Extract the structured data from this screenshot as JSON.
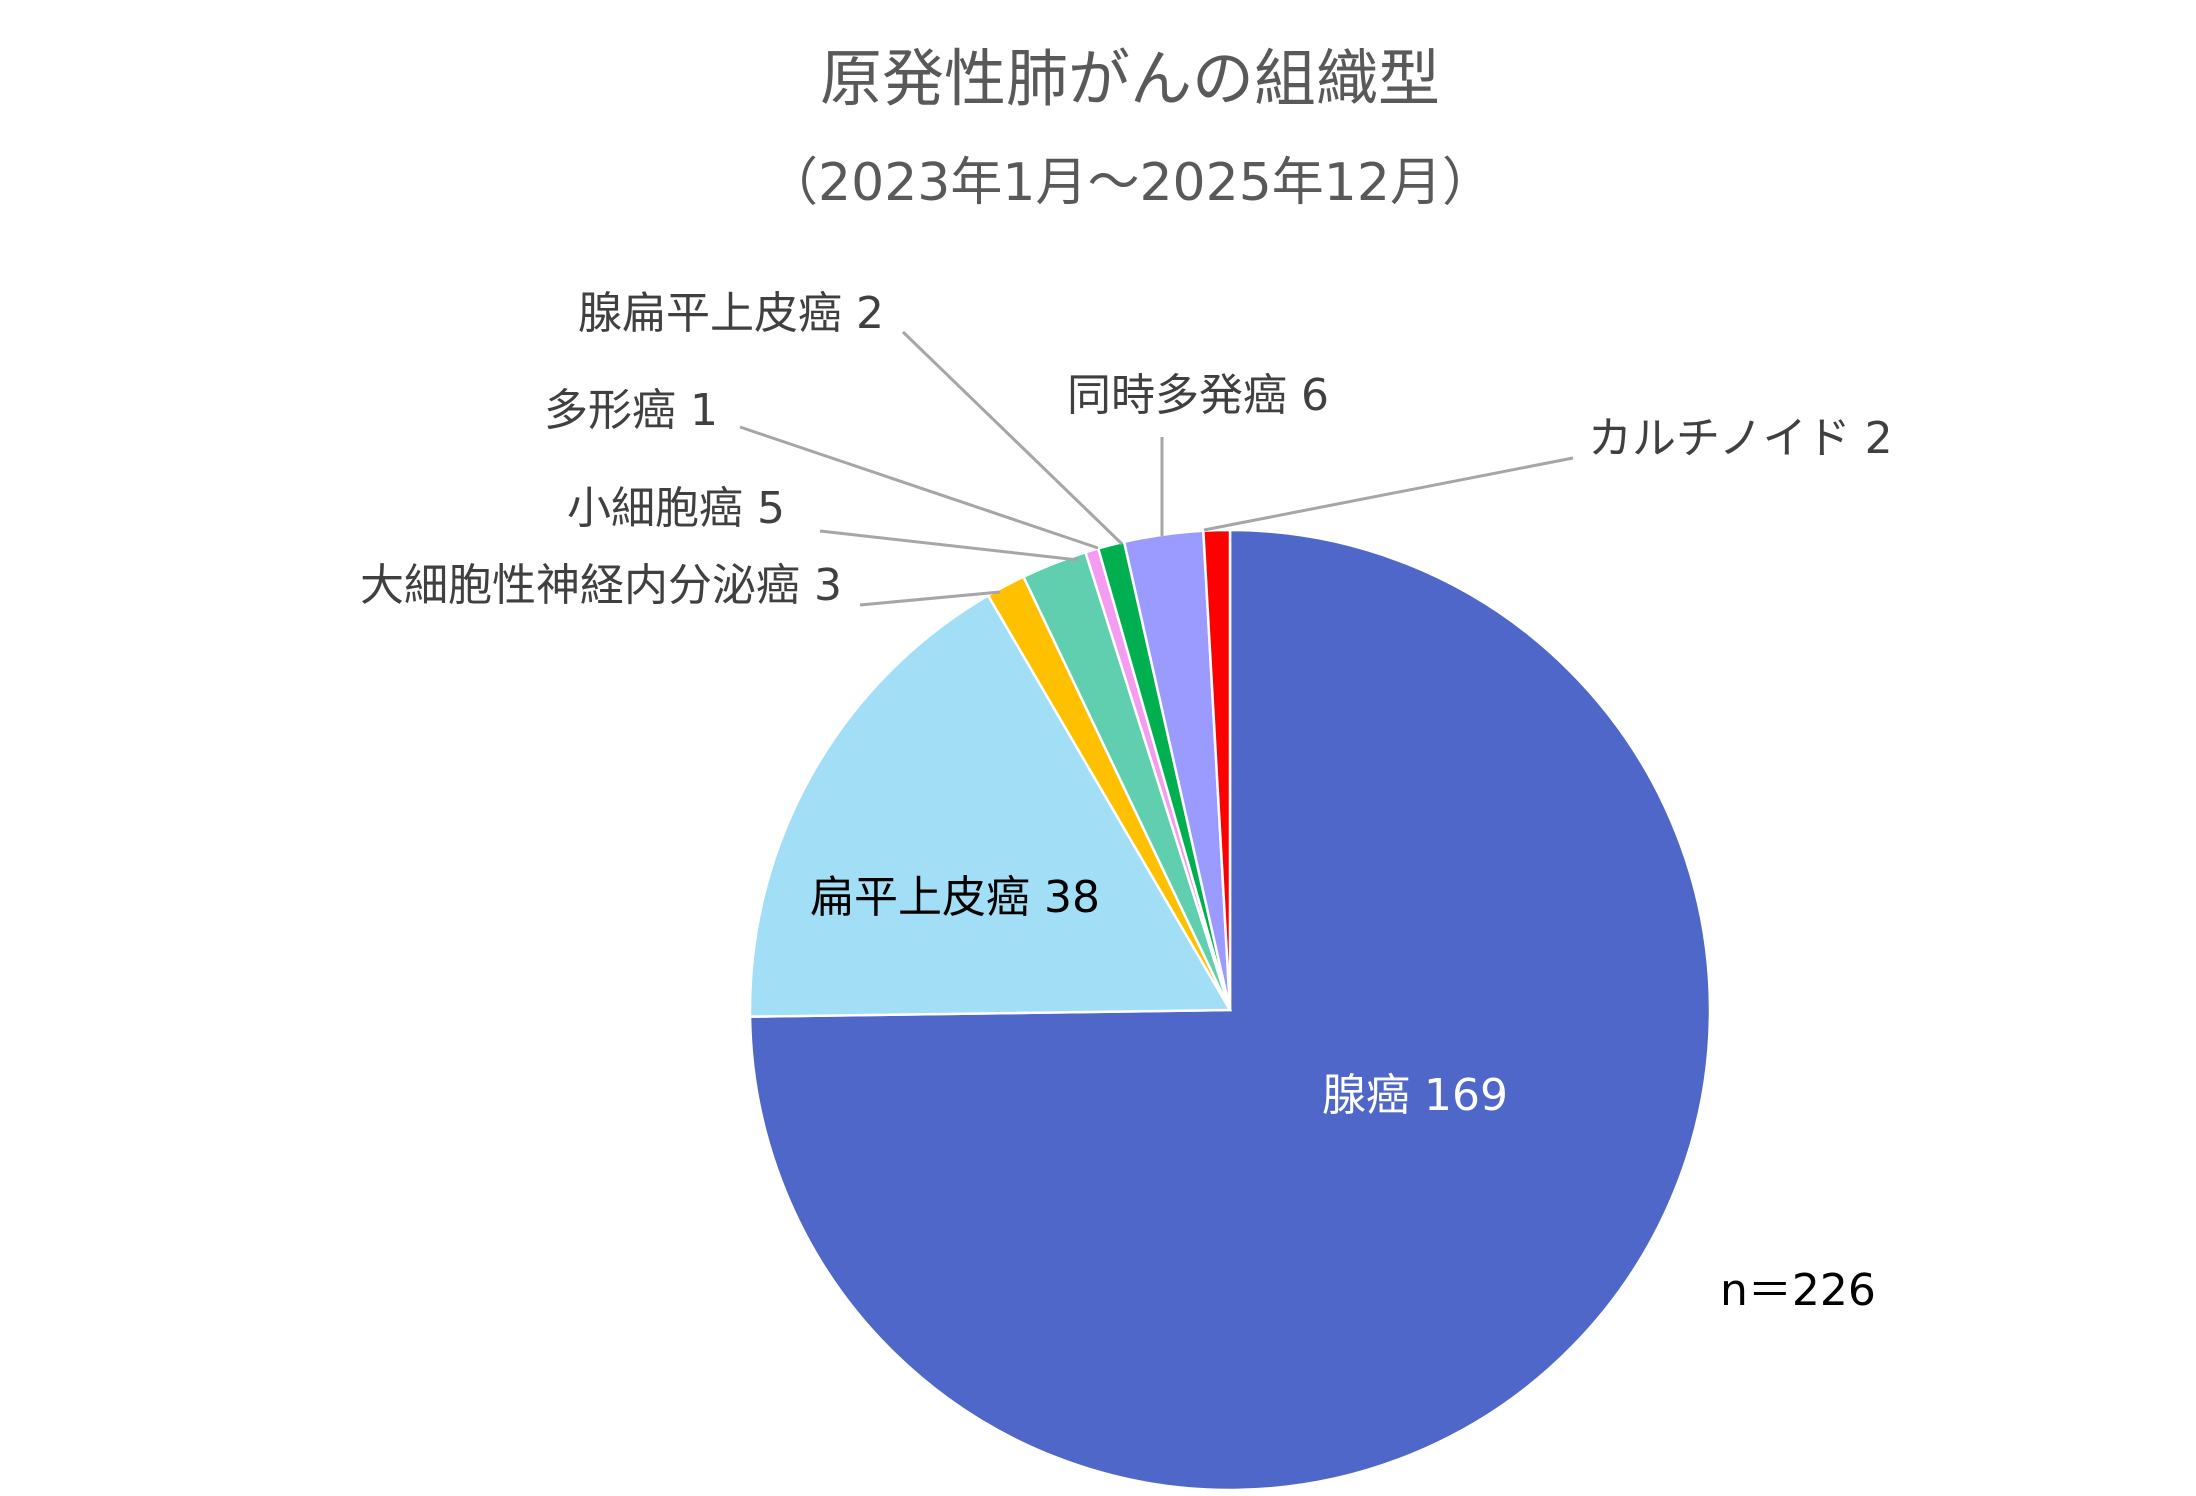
{
  "chart_data": {
    "type": "pie",
    "title": "原発性肺がんの組織型",
    "subtitle": "（2023年1月～2025年12月）",
    "note": "n＝226",
    "start": "12 o'clock",
    "direction": "clockwise",
    "slices": [
      {
        "name": "腺癌",
        "value": 169,
        "color": "#4f67c8",
        "label_text": "腺癌 169"
      },
      {
        "name": "扁平上皮癌",
        "value": 38,
        "color": "#a2dff6",
        "label_text": "扁平上皮癌 38"
      },
      {
        "name": "大細胞性神経内分泌癌",
        "value": 3,
        "color": "#ffc000",
        "label_text": "大細胞性神経内分泌癌 3"
      },
      {
        "name": "小細胞癌",
        "value": 5,
        "color": "#5fcfb0",
        "label_text": "小細胞癌 5"
      },
      {
        "name": "多形癌",
        "value": 1,
        "color": "#f49cf2",
        "label_text": "多形癌 1"
      },
      {
        "name": "腺扁平上皮癌",
        "value": 2,
        "color": "#00b050",
        "label_text": "腺扁平上皮癌 2"
      },
      {
        "name": "同時多発癌",
        "value": 6,
        "color": "#9b9bff",
        "label_text": "同時多発癌 6"
      },
      {
        "name": "カルチノイド",
        "value": 2,
        "color": "#ff0000",
        "label_text": "カルチノイド 2"
      }
    ]
  }
}
